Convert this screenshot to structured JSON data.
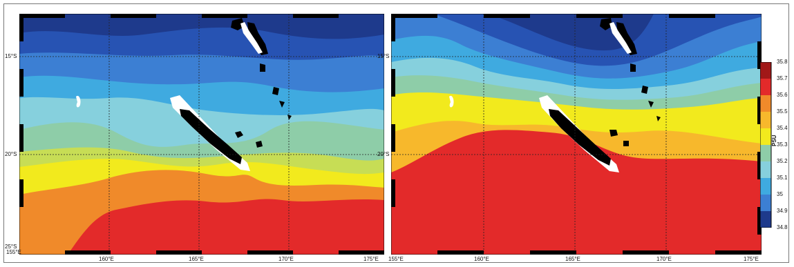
{
  "colors": {
    "levels": [
      "#1e3a8c",
      "#2753b3",
      "#3c7fd3",
      "#3faae0",
      "#86d0dd",
      "#8ecda8",
      "#c7dd55",
      "#f2ea1d",
      "#f7b82c",
      "#f08a2a",
      "#e32a2a",
      "#a11818"
    ],
    "land": "#000000",
    "coast": "#ffffff",
    "grid": "#222222"
  },
  "left_map": {
    "lon_labels": [
      "155°E",
      "160°E",
      "165°E",
      "170°E",
      "175°E"
    ],
    "lat_labels": [
      "15°S",
      "20°S",
      "25°S"
    ]
  },
  "right_map": {
    "lon_labels": [
      "155°E",
      "160°E",
      "165°E",
      "170°E",
      "175°E"
    ],
    "lat_labels": [
      "15°S",
      "20°S"
    ]
  },
  "colorbar": {
    "unit": "PSU",
    "ticks": [
      "35.8",
      "35.7",
      "35.6",
      "35.5",
      "35.4",
      "35.3",
      "35.2",
      "35.1",
      "35",
      "34.9",
      "34.8"
    ]
  }
}
